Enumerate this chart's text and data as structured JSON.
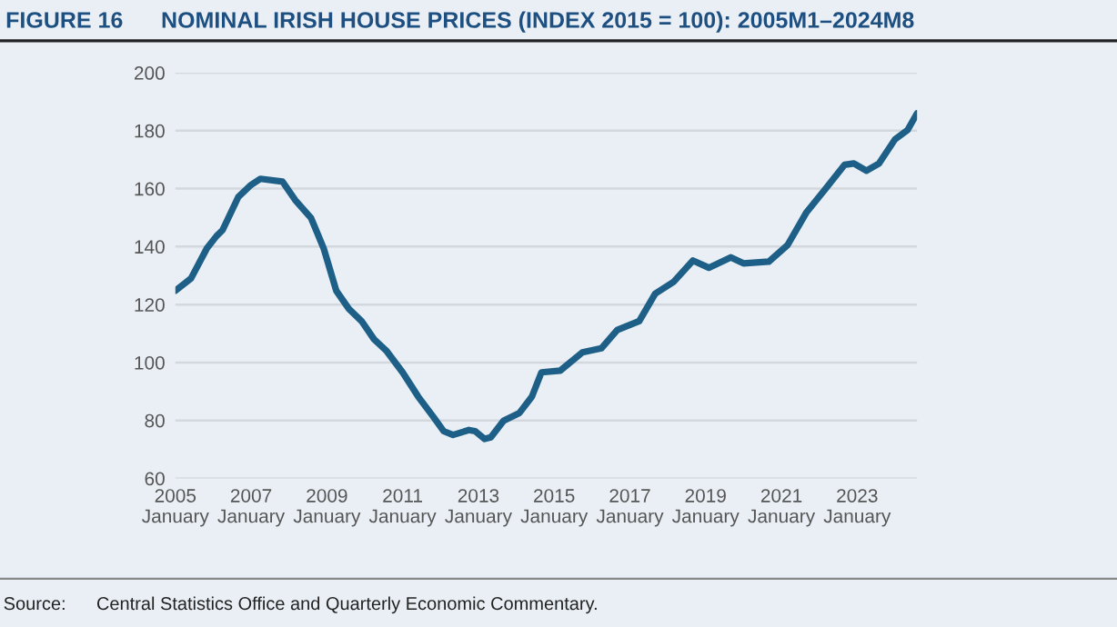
{
  "chart_data": {
    "type": "line",
    "title": "FIGURE 16      NOMINAL IRISH HOUSE PRICES (INDEX 2015 = 100): 2005M1–2024M8",
    "annotations": [
      "Source:      Central Statistics Office and Quarterly Economic Commentary."
    ],
    "series": [
      {
        "color": "#1d5f86",
        "x": [
          "2005-01",
          "2005-06",
          "2005-11",
          "2006-02",
          "2006-04",
          "2006-09",
          "2007-01",
          "2007-04",
          "2007-11",
          "2008-03",
          "2008-08",
          "2008-12",
          "2009-04",
          "2009-08",
          "2009-12",
          "2010-04",
          "2010-08",
          "2011-01",
          "2011-06",
          "2011-11",
          "2012-02",
          "2012-05",
          "2012-10",
          "2012-12",
          "2013-03",
          "2013-05",
          "2013-09",
          "2014-02",
          "2014-06",
          "2014-09",
          "2015-03",
          "2015-10",
          "2016-04",
          "2016-09",
          "2017-04",
          "2017-09",
          "2018-03",
          "2018-09",
          "2019-02",
          "2019-09",
          "2020-01",
          "2020-09",
          "2021-03",
          "2021-09",
          "2022-03",
          "2022-09",
          "2022-12",
          "2023-04",
          "2023-08",
          "2024-01",
          "2024-05",
          "2024-08"
        ],
        "values": [
          124.8,
          129,
          139.4,
          143.6,
          145.7,
          157.2,
          161.3,
          163.4,
          162.4,
          156.1,
          149.9,
          139.4,
          124.8,
          118.5,
          114.3,
          108,
          103.9,
          96.6,
          88.2,
          80.9,
          76.3,
          75,
          76.7,
          76.3,
          73.6,
          74.2,
          79.9,
          82.6,
          88.2,
          96.6,
          97.2,
          103.5,
          104.9,
          111.2,
          114.3,
          123.7,
          127.9,
          135.2,
          132.7,
          136.3,
          134.2,
          134.8,
          140.5,
          151.9,
          159.9,
          168.2,
          168.7,
          166.2,
          168.7,
          177,
          180.2,
          186
        ]
      }
    ],
    "xlim": [
      "2005-01",
      "2024-08"
    ],
    "xticks": [
      {
        "value": "2005-01",
        "label": "2005\nJanuary"
      },
      {
        "value": "2007-01",
        "label": "2007\nJanuary"
      },
      {
        "value": "2009-01",
        "label": "2009\nJanuary"
      },
      {
        "value": "2011-01",
        "label": "2011\nJanuary"
      },
      {
        "value": "2013-01",
        "label": "2013\nJanuary"
      },
      {
        "value": "2015-01",
        "label": "2015\nJanuary"
      },
      {
        "value": "2017-01",
        "label": "2017\nJanuary"
      },
      {
        "value": "2019-01",
        "label": "2019\nJanuary"
      },
      {
        "value": "2021-01",
        "label": "2021\nJanuary"
      },
      {
        "value": "2023-01",
        "label": "2023\nJanuary"
      }
    ],
    "ylim": [
      60,
      200
    ],
    "yticks": [
      60,
      80,
      100,
      120,
      140,
      160,
      180,
      200
    ],
    "grid": "y",
    "legend": false,
    "line_style": "solid",
    "marker": "none"
  }
}
